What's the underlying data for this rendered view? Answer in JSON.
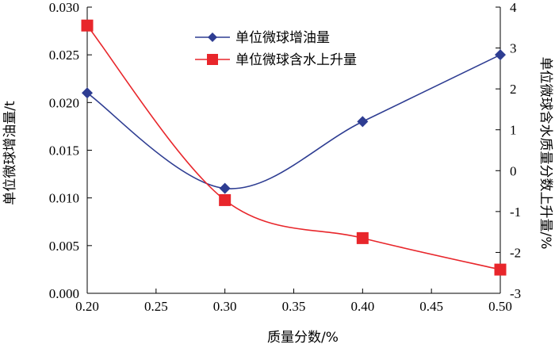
{
  "chart_data": {
    "type": "line",
    "x": [
      0.2,
      0.3,
      0.4,
      0.5
    ],
    "xlabel": "质量分数/%",
    "ylabel": "单位微球增油量/t",
    "y2label": "单位微球含水质量分数上升量/%",
    "xlim": [
      0.2,
      0.5
    ],
    "ylim": [
      0.0,
      0.03
    ],
    "y2lim": [
      -3,
      4
    ],
    "xticks": [
      "0.20",
      "0.25",
      "0.30",
      "0.35",
      "0.40",
      "0.45",
      "0.50"
    ],
    "yticks": [
      "0.000",
      "0.005",
      "0.010",
      "0.015",
      "0.020",
      "0.025",
      "0.030"
    ],
    "y2ticks": [
      "-3",
      "-2",
      "-1",
      "0",
      "1",
      "2",
      "3",
      "4"
    ],
    "legend_position": "top-center",
    "series": [
      {
        "name": "单位微球增油量",
        "axis": "left",
        "marker": "diamond",
        "color": "#2e3d92",
        "values": [
          0.021,
          0.011,
          0.018,
          0.025
        ]
      },
      {
        "name": "单位微球含水上升量",
        "axis": "right",
        "marker": "square",
        "color": "#e8262b",
        "values": [
          3.55,
          -0.72,
          -1.65,
          -2.42
        ]
      }
    ]
  }
}
